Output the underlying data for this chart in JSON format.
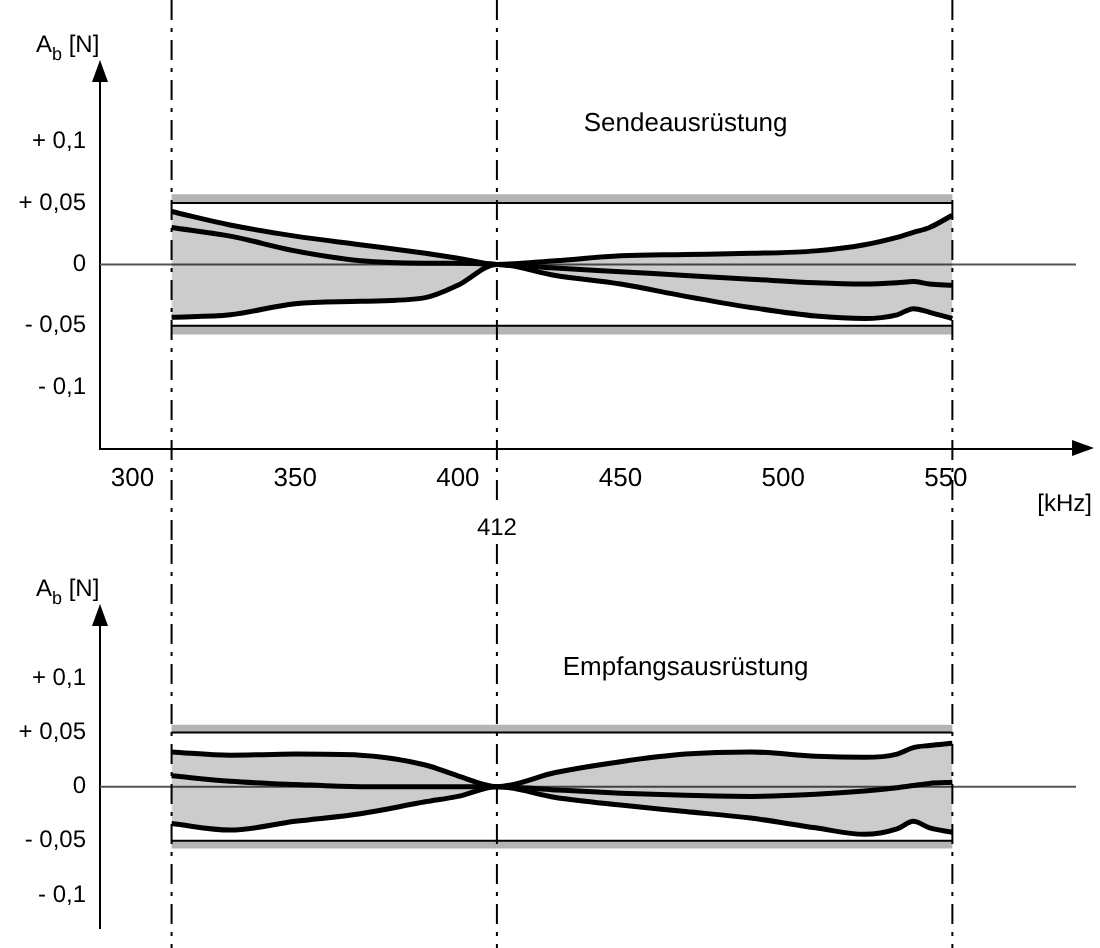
{
  "chart_data": [
    {
      "type": "line",
      "title": "Sendeausrüstung",
      "xlabel": "[kHz]",
      "ylabel": "A$_{b}$ [N]",
      "xlim": [
        290,
        590
      ],
      "xticks": [
        300,
        350,
        400,
        450,
        500,
        550
      ],
      "ylim": [
        -0.15,
        0.15
      ],
      "yticks": [
        {
          "value": 0.1,
          "label": "+ 0,1"
        },
        {
          "value": 0.05,
          "label": "+ 0,05"
        },
        0,
        {
          "value": -0.05,
          "label": "- 0,05"
        },
        {
          "value": -0.1,
          "label": "- 0,1"
        }
      ],
      "x": [
        312,
        330,
        350,
        370,
        390,
        400,
        412,
        430,
        450,
        470,
        490,
        510,
        525,
        535,
        540,
        545,
        552
      ],
      "series": [
        {
          "color": "#000000",
          "values": [
            0.03,
            0.023,
            0.011,
            0.003,
            0.001,
            0.001,
            0,
            -0.003,
            -0.006,
            -0.009,
            -0.012,
            -0.015,
            -0.016,
            -0.015,
            -0.014,
            -0.016,
            -0.017
          ],
          "upper": [
            0.043,
            0.032,
            0.023,
            0.016,
            0.009,
            0.005,
            0,
            0.003,
            0.007,
            0.008,
            0.009,
            0.011,
            0.016,
            0.022,
            0.026,
            0.03,
            0.04
          ],
          "lower": [
            -0.043,
            -0.041,
            -0.032,
            -0.03,
            -0.027,
            -0.017,
            0,
            -0.009,
            -0.016,
            -0.026,
            -0.035,
            -0.042,
            -0.044,
            -0.041,
            -0.036,
            -0.039,
            -0.044
          ]
        },
        {
          "color": "#000000",
          "values": [
            0.043,
            0.032,
            0.023,
            0.016,
            0.009,
            0.005,
            0,
            0.003,
            0.007,
            0.008,
            0.009,
            0.011,
            0.016,
            0.022,
            0.026,
            0.03,
            0.04
          ]
        },
        {
          "color": "#000000",
          "values": [
            -0.043,
            -0.041,
            -0.032,
            -0.03,
            -0.027,
            -0.017,
            0,
            -0.009,
            -0.016,
            -0.026,
            -0.035,
            -0.042,
            -0.044,
            -0.041,
            -0.036,
            -0.039,
            -0.044
          ]
        }
      ],
      "bands": [
        {
          "axis": "y",
          "from": 0.05,
          "to": 0.057,
          "color": "#b4b4b4"
        },
        {
          "axis": "y",
          "from": -0.057,
          "to": -0.05,
          "color": "#b4b4b4"
        }
      ],
      "ref_lines": [
        {
          "axis": "y",
          "value": 0.05,
          "color": "#000000"
        },
        {
          "axis": "y",
          "value": -0.05,
          "color": "#000000"
        },
        {
          "axis": "y",
          "value": 0,
          "color": "#555555"
        },
        {
          "axis": "x",
          "value": 312,
          "color": "#000000",
          "line_style": "dashed"
        },
        {
          "axis": "x",
          "value": 412,
          "label": "412",
          "color": "#000000",
          "line_style": "dashed"
        },
        {
          "axis": "x",
          "value": 552,
          "color": "#000000",
          "line_style": "dashed"
        }
      ]
    },
    {
      "type": "line",
      "title": "Empfangsausrüstung",
      "ylabel": "A$_{b}$ [N]",
      "tick_labels": "y",
      "xlim": [
        290,
        590
      ],
      "ylim": [
        -0.13,
        0.15
      ],
      "yticks": [
        {
          "value": 0.1,
          "label": "+ 0,1"
        },
        {
          "value": 0.05,
          "label": "+ 0,05"
        },
        0,
        {
          "value": -0.05,
          "label": "- 0,05"
        },
        {
          "value": -0.1,
          "label": "- 0,1"
        }
      ],
      "x": [
        312,
        330,
        350,
        370,
        390,
        400,
        412,
        430,
        450,
        470,
        490,
        510,
        525,
        535,
        540,
        545,
        552
      ],
      "series": [
        {
          "color": "#000000",
          "values": [
            0.01,
            0.005,
            0.002,
            0,
            0,
            0,
            0,
            -0.003,
            -0.006,
            -0.008,
            -0.009,
            -0.007,
            -0.004,
            -0.001,
            0.001,
            0.003,
            0.004
          ],
          "upper": [
            0.032,
            0.029,
            0.03,
            0.029,
            0.02,
            0.01,
            0,
            0.013,
            0.023,
            0.03,
            0.032,
            0.028,
            0.027,
            0.03,
            0.036,
            0.038,
            0.04
          ],
          "lower": [
            -0.034,
            -0.04,
            -0.032,
            -0.025,
            -0.014,
            -0.009,
            0,
            -0.01,
            -0.017,
            -0.023,
            -0.029,
            -0.038,
            -0.044,
            -0.039,
            -0.032,
            -0.038,
            -0.042
          ]
        },
        {
          "color": "#000000",
          "values": [
            0.032,
            0.029,
            0.03,
            0.029,
            0.02,
            0.01,
            0,
            0.013,
            0.023,
            0.03,
            0.032,
            0.028,
            0.027,
            0.03,
            0.036,
            0.038,
            0.04
          ]
        },
        {
          "color": "#000000",
          "values": [
            -0.034,
            -0.04,
            -0.032,
            -0.025,
            -0.014,
            -0.009,
            0,
            -0.01,
            -0.017,
            -0.023,
            -0.029,
            -0.038,
            -0.044,
            -0.039,
            -0.032,
            -0.038,
            -0.042
          ]
        }
      ],
      "bands": [
        {
          "axis": "y",
          "from": 0.05,
          "to": 0.057,
          "color": "#b4b4b4"
        },
        {
          "axis": "y",
          "from": -0.057,
          "to": -0.05,
          "color": "#b4b4b4"
        }
      ],
      "ref_lines": [
        {
          "axis": "y",
          "value": 0.05,
          "color": "#000000"
        },
        {
          "axis": "y",
          "value": -0.05,
          "color": "#000000"
        },
        {
          "axis": "y",
          "value": 0,
          "color": "#555555"
        },
        {
          "axis": "x",
          "value": 312,
          "color": "#000000",
          "line_style": "dashed"
        },
        {
          "axis": "x",
          "value": 412,
          "color": "#000000",
          "line_style": "dashed"
        },
        {
          "axis": "x",
          "value": 552,
          "color": "#000000",
          "line_style": "dashed"
        }
      ]
    }
  ]
}
